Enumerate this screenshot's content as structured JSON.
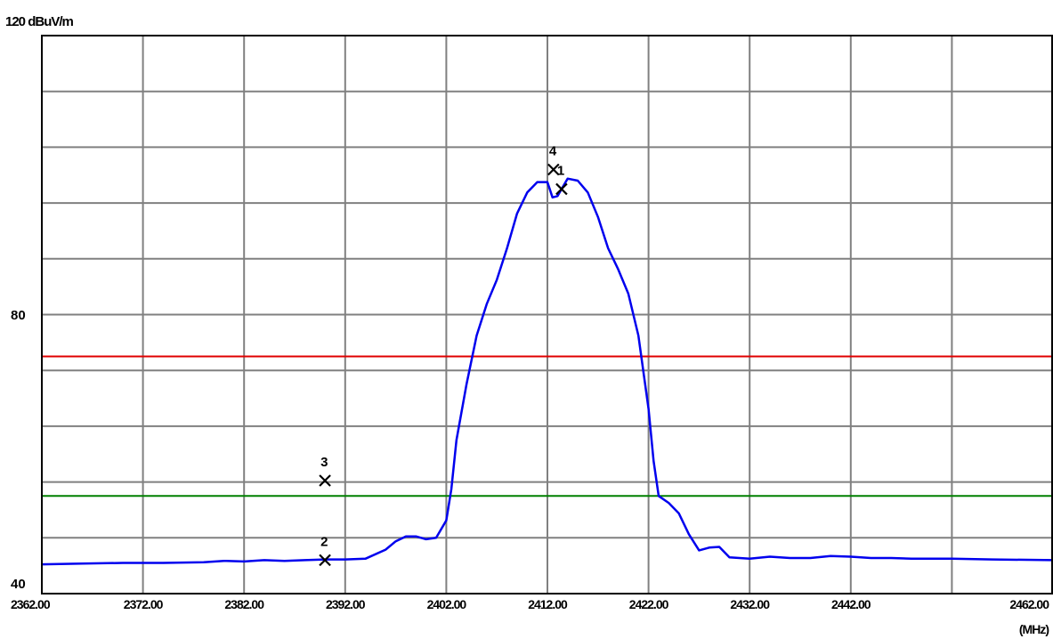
{
  "chart_data": {
    "type": "line",
    "y_top_label": "120 dBuV/m",
    "y_mid_label": "80",
    "y_bottom_label": "40",
    "x_unit_label": "(MHz)",
    "xlim": [
      2362,
      2462
    ],
    "ylim": [
      40,
      120
    ],
    "x_ticks": [
      {
        "value": 2362,
        "label": "2362.00"
      },
      {
        "value": 2372,
        "label": "2372.00"
      },
      {
        "value": 2382,
        "label": "2382.00"
      },
      {
        "value": 2392,
        "label": "2392.00"
      },
      {
        "value": 2402,
        "label": "2402.00"
      },
      {
        "value": 2412,
        "label": "2412.00"
      },
      {
        "value": 2422,
        "label": "2422.00"
      },
      {
        "value": 2432,
        "label": "2432.00"
      },
      {
        "value": 2442,
        "label": "2442.00"
      },
      {
        "value": 2462,
        "label": "2462.00"
      }
    ],
    "grid": true,
    "limit_lines": [
      {
        "value": 74,
        "color": "#e00000"
      },
      {
        "value": 54,
        "color": "#008000"
      }
    ],
    "series": [
      {
        "color": "#0000ee",
        "x": [
          2362,
          2366,
          2370,
          2374,
          2378,
          2380,
          2382,
          2384,
          2386,
          2388,
          2390,
          2392,
          2394,
          2396,
          2397,
          2398,
          2399,
          2400,
          2401,
          2402,
          2402.5,
          2403,
          2404,
          2405,
          2406,
          2407,
          2408,
          2409,
          2410,
          2411,
          2412,
          2412.5,
          2413,
          2414,
          2415,
          2416,
          2417,
          2418,
          2419,
          2420,
          2421,
          2422,
          2422.5,
          2423,
          2424,
          2425,
          2426,
          2427,
          2428,
          2429,
          2430,
          2432,
          2434,
          2436,
          2438,
          2440,
          2442,
          2444,
          2446,
          2448,
          2452,
          2456,
          2462
        ],
        "y": [
          44.2,
          44.3,
          44.4,
          44.4,
          44.5,
          44.7,
          44.6,
          44.8,
          44.7,
          44.8,
          44.9,
          44.9,
          45.0,
          46.3,
          47.5,
          48.2,
          48.2,
          47.8,
          48.0,
          50.5,
          55.0,
          62.0,
          70.0,
          77.0,
          81.5,
          85.0,
          89.5,
          94.5,
          97.5,
          99.0,
          99.0,
          96.8,
          97.0,
          99.5,
          99.2,
          97.5,
          94.0,
          89.5,
          86.5,
          83.0,
          77.0,
          66.5,
          59.0,
          54.0,
          53.0,
          51.5,
          48.5,
          46.2,
          46.6,
          46.7,
          45.2,
          45.0,
          45.3,
          45.1,
          45.1,
          45.4,
          45.3,
          45.1,
          45.1,
          45.0,
          45.0,
          44.9,
          44.8
        ]
      }
    ],
    "markers": [
      {
        "label": "1",
        "x": 2413.4,
        "y": 98.0
      },
      {
        "label": "2",
        "x": 2390,
        "y": 44.8
      },
      {
        "label": "3",
        "x": 2390,
        "y": 56.2
      },
      {
        "label": "4",
        "x": 2412.6,
        "y": 100.8
      }
    ]
  }
}
